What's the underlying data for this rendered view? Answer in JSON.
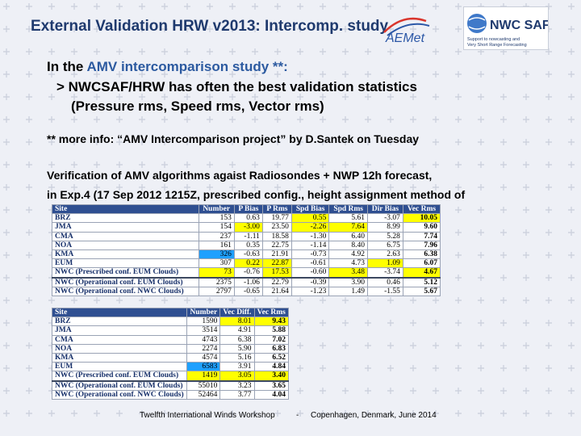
{
  "title": "External Validation HRW v2013: Intercomp. study",
  "logos": {
    "aemet_text": "AEMet",
    "nwc_text": "NWC SAF",
    "nwc_sub1": "Support to nowcasting and",
    "nwc_sub2": "Very Short Range Forecasting"
  },
  "intro": {
    "line1_prefix": "In the ",
    "line1_accent": "AMV intercomparison study **:",
    "line2": "> NWCSAF/HRW has often the best validation statistics",
    "line3": "(Pressure rms, Speed rms, Vector rms)"
  },
  "info": "** more info: “AMV Intercomparison project” by D.Santek on Tuesday",
  "verification": {
    "line1": "Verification of AMV algorithms agaist Radiosondes + NWP 12h forecast,",
    "line2": "in Exp.4 (17 Sep 2012 1215Z, prescribed config., height assignment method of"
  },
  "table1": {
    "headers": [
      "Site",
      "Number",
      "P Bias",
      "P Rms",
      "Spd Bias",
      "Spd Rms",
      "Dir Bias",
      "Vec Rms"
    ],
    "rows": [
      {
        "site": "BRZ",
        "cells": [
          "153",
          "0.63",
          "19.77",
          "0.55",
          "5.61",
          "-3.07",
          "10.05"
        ],
        "hl": [
          3,
          6
        ],
        "bold": [
          6
        ]
      },
      {
        "site": "JMA",
        "cells": [
          "154",
          "-3.00",
          "23.50",
          "-2.26",
          "7.64",
          "8.99",
          "9.60"
        ],
        "hl": [
          1,
          3,
          4
        ],
        "bold": [
          6
        ]
      },
      {
        "site": "CMA",
        "cells": [
          "237",
          "-1.11",
          "18.58",
          "-1.30",
          "6.40",
          "5.28",
          "7.74"
        ],
        "hl": [],
        "bold": [
          6
        ]
      },
      {
        "site": "NOA",
        "cells": [
          "161",
          "0.35",
          "22.75",
          "-1.14",
          "8.40",
          "6.75",
          "7.96"
        ],
        "hl": [],
        "bold": [
          6
        ]
      },
      {
        "site": "KMA",
        "cells": [
          "326",
          "-0.63",
          "21.91",
          "-0.73",
          "4.92",
          "2.63",
          "6.38"
        ],
        "hl": [],
        "hb": [
          0
        ],
        "bold": [
          6
        ]
      },
      {
        "site": "EUM",
        "cells": [
          "307",
          "0.22",
          "22.87",
          "-0.61",
          "4.73",
          "1.09",
          "6.07"
        ],
        "hl": [
          1,
          2,
          5
        ],
        "bold": [
          6
        ]
      },
      {
        "site": "NWC (Prescribed conf. EUM Clouds)",
        "cells": [
          "73",
          "-0.76",
          "17.53",
          "-0.60",
          "3.48",
          "-3.74",
          "4.67"
        ],
        "hl": [
          0,
          2,
          4,
          6
        ],
        "bold": [
          6
        ]
      },
      {
        "site": "NWC (Operational conf. EUM Clouds)",
        "cells": [
          "2375",
          "-1.06",
          "22.79",
          "-0.39",
          "3.90",
          "0.46",
          "5.12"
        ],
        "hl": [],
        "bold": [
          6
        ],
        "sep": true
      },
      {
        "site": "NWC (Operational conf. NWC Clouds)",
        "cells": [
          "2797",
          "-0.65",
          "21.64",
          "-1.23",
          "1.49",
          "-1.55",
          "5.67"
        ],
        "hl": [],
        "bold": [
          6
        ]
      }
    ]
  },
  "table2": {
    "headers": [
      "Site",
      "Number",
      "Vec Diff.",
      "Vec Rms"
    ],
    "rows": [
      {
        "site": "BRZ",
        "cells": [
          "1590",
          "8.01",
          "9.43"
        ],
        "hl": [
          1,
          2
        ],
        "bold": [
          2
        ]
      },
      {
        "site": "JMA",
        "cells": [
          "3514",
          "4.91",
          "5.88"
        ],
        "hl": [],
        "bold": [
          2
        ]
      },
      {
        "site": "CMA",
        "cells": [
          "4743",
          "6.38",
          "7.02"
        ],
        "hl": [],
        "bold": [
          2
        ]
      },
      {
        "site": "NOA",
        "cells": [
          "2274",
          "5.90",
          "6.83"
        ],
        "hl": [],
        "bold": [
          2
        ]
      },
      {
        "site": "KMA",
        "cells": [
          "4574",
          "5.16",
          "6.52"
        ],
        "hl": [],
        "bold": [
          2
        ]
      },
      {
        "site": "EUM",
        "cells": [
          "6583",
          "3.91",
          "4.84"
        ],
        "hl": [],
        "hb": [
          0
        ],
        "bold": [
          2
        ]
      },
      {
        "site": "NWC (Prescribed conf. EUM Clouds)",
        "cells": [
          "1419",
          "3.05",
          "3.40"
        ],
        "hl": [
          0,
          1,
          2
        ],
        "bold": [
          2
        ]
      },
      {
        "site": "NWC (Operational conf. EUM Clouds)",
        "cells": [
          "55010",
          "3.23",
          "3.65"
        ],
        "hl": [],
        "bold": [
          2
        ],
        "sep": true
      },
      {
        "site": "NWC (Operational conf. NWC Clouds)",
        "cells": [
          "52464",
          "3.77",
          "4.04"
        ],
        "hl": [],
        "bold": [
          2
        ]
      }
    ]
  },
  "footer": {
    "workshop": "Twelfth International Winds Workshop",
    "dash": "-",
    "place": "Copenhagen, Denmark, June 2014"
  },
  "colors": {
    "title": "#1f3a6e",
    "header": "#2f4f91",
    "highlight": "#ffff00",
    "highlight_blue": "#1fa0ff"
  }
}
